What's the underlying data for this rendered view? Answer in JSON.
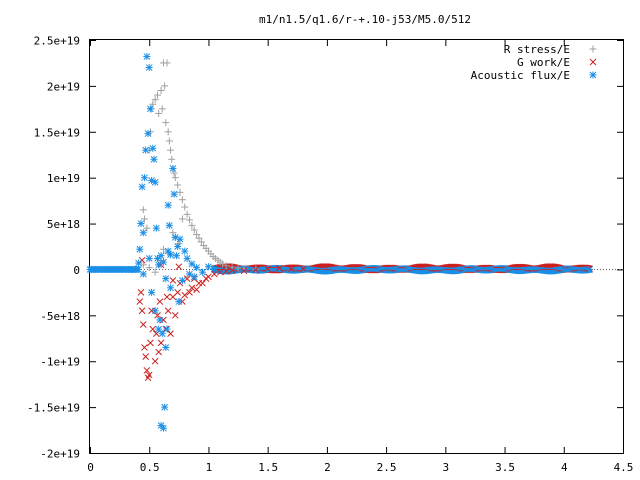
{
  "chart_data": {
    "type": "scatter",
    "title": "m1/n1.5/q1.6/r-+.10-j53/M5.0/512",
    "xlabel": "",
    "ylabel": "",
    "xlim": [
      0,
      4.5
    ],
    "ylim": [
      -2e+19,
      2.5e+19
    ],
    "grid": false,
    "legend_position": "top-right",
    "x_ticks": [
      {
        "value": 0,
        "label": "0"
      },
      {
        "value": 0.5,
        "label": "0.5"
      },
      {
        "value": 1,
        "label": "1"
      },
      {
        "value": 1.5,
        "label": "1.5"
      },
      {
        "value": 2,
        "label": "2"
      },
      {
        "value": 2.5,
        "label": "2.5"
      },
      {
        "value": 3,
        "label": "3"
      },
      {
        "value": 3.5,
        "label": "3.5"
      },
      {
        "value": 4,
        "label": "4"
      },
      {
        "value": 4.5,
        "label": "4.5"
      }
    ],
    "y_ticks": [
      {
        "value": 2.5e+19,
        "label": "2.5e+19"
      },
      {
        "value": 2e+19,
        "label": "2e+19"
      },
      {
        "value": 1.5e+19,
        "label": "1.5e+19"
      },
      {
        "value": 1e+19,
        "label": "1e+19"
      },
      {
        "value": 5e+18,
        "label": "5e+18"
      },
      {
        "value": 0,
        "label": "0"
      },
      {
        "value": -5e+18,
        "label": "-5e+18"
      },
      {
        "value": -1e+19,
        "label": "-1e+19"
      },
      {
        "value": -1.5e+19,
        "label": "-1.5e+19"
      },
      {
        "value": -2e+19,
        "label": "-2e+19"
      }
    ],
    "series": [
      {
        "name": "R stress/E",
        "marker": "plus",
        "color": "#a0a0a0",
        "points": [
          [
            0.45,
            6.5e+18
          ],
          [
            0.46,
            5.5e+18
          ],
          [
            0.48,
            4.5e+18
          ],
          [
            0.5,
            1.3e+19
          ],
          [
            0.51,
            1.5e+19
          ],
          [
            0.52,
            1.75e+19
          ],
          [
            0.53,
            1.8e+19
          ],
          [
            0.55,
            1.85e+19
          ],
          [
            0.57,
            1.9e+19
          ],
          [
            0.58,
            1.7e+19
          ],
          [
            0.6,
            1.95e+19
          ],
          [
            0.61,
            1.75e+19
          ],
          [
            0.62,
            2.25e+19
          ],
          [
            0.63,
            2e+19
          ],
          [
            0.64,
            1.6e+19
          ],
          [
            0.65,
            2.25e+19
          ],
          [
            0.66,
            1.5e+19
          ],
          [
            0.67,
            1.4e+19
          ],
          [
            0.68,
            1.3e+19
          ],
          [
            0.69,
            1.2e+19
          ],
          [
            0.7,
            1.1e+19
          ],
          [
            0.71,
            1.05e+19
          ],
          [
            0.72,
            1e+19
          ],
          [
            0.74,
            9.2e+18
          ],
          [
            0.76,
            8.4e+18
          ],
          [
            0.78,
            7.6e+18
          ],
          [
            0.8,
            6.8e+18
          ],
          [
            0.82,
            6e+18
          ],
          [
            0.84,
            5.4e+18
          ],
          [
            0.86,
            4.8e+18
          ],
          [
            0.88,
            4.3e+18
          ],
          [
            0.9,
            3.8e+18
          ],
          [
            0.92,
            3.4e+18
          ],
          [
            0.94,
            3e+18
          ],
          [
            0.96,
            2.6e+18
          ],
          [
            0.98,
            2.3e+18
          ],
          [
            1.0,
            2e+18
          ],
          [
            1.02,
            1.7e+18
          ],
          [
            1.04,
            1.4e+18
          ],
          [
            1.06,
            1.2e+18
          ],
          [
            1.08,
            1e+18
          ],
          [
            1.1,
            8e+17
          ],
          [
            1.12,
            6e+17
          ],
          [
            1.15,
            4e+17
          ],
          [
            1.2,
            2.5e+17
          ],
          [
            1.25,
            1.5e+17
          ],
          [
            1.3,
            1e+17
          ],
          [
            1.4,
            5e+16
          ],
          [
            0.45,
            5e+17
          ],
          [
            0.5,
            2e+17
          ],
          [
            0.55,
            -3e+17
          ],
          [
            0.6,
            1e+18
          ],
          [
            0.62,
            2.2e+18
          ],
          [
            0.66,
            1.8e+18
          ],
          [
            0.7,
            4e+18
          ],
          [
            0.72,
            3.5e+18
          ],
          [
            0.75,
            2.8e+18
          ],
          [
            0.78,
            5.5e+18
          ]
        ]
      },
      {
        "name": "G work/E",
        "marker": "cross",
        "color": "#cc2020",
        "points": [
          [
            0.42,
            -3.5e+18
          ],
          [
            0.43,
            -2.5e+18
          ],
          [
            0.44,
            -4.5e+18
          ],
          [
            0.45,
            -6e+18
          ],
          [
            0.46,
            -8.5e+18
          ],
          [
            0.47,
            -9.5e+18
          ],
          [
            0.48,
            -1.1e+19
          ],
          [
            0.49,
            -1.18e+19
          ],
          [
            0.5,
            -1.15e+19
          ],
          [
            0.51,
            -8e+18
          ],
          [
            0.52,
            -4.5e+18
          ],
          [
            0.53,
            -6.5e+18
          ],
          [
            0.55,
            -1e+19
          ],
          [
            0.56,
            -7e+18
          ],
          [
            0.57,
            -5e+18
          ],
          [
            0.58,
            -9e+18
          ],
          [
            0.59,
            -3.5e+18
          ],
          [
            0.6,
            -8e+18
          ],
          [
            0.62,
            -5.5e+18
          ],
          [
            0.64,
            -6.5e+18
          ],
          [
            0.65,
            -3e+18
          ],
          [
            0.66,
            -4.5e+18
          ],
          [
            0.68,
            -7e+18
          ],
          [
            0.7,
            -3e+18
          ],
          [
            0.72,
            -5e+18
          ],
          [
            0.74,
            -2.5e+18
          ],
          [
            0.76,
            -1.5e+18
          ],
          [
            0.78,
            -3.5e+18
          ],
          [
            0.8,
            -2.8e+18
          ],
          [
            0.82,
            -1e+18
          ],
          [
            0.84,
            -2.5e+18
          ],
          [
            0.86,
            -2e+18
          ],
          [
            0.88,
            -1e+18
          ],
          [
            0.9,
            -2.2e+18
          ],
          [
            0.92,
            -1.5e+18
          ],
          [
            0.95,
            -1.5e+18
          ],
          [
            0.98,
            -1e+18
          ],
          [
            1.0,
            -8e+17
          ],
          [
            1.05,
            -5e+17
          ],
          [
            1.1,
            -3e+17
          ],
          [
            1.15,
            -2e+17
          ],
          [
            1.2,
            -1e+17
          ],
          [
            1.3,
            -1.5e+17
          ],
          [
            1.4,
            -5e+16
          ],
          [
            1.5,
            1e+17
          ],
          [
            1.6,
            1.5e+17
          ],
          [
            1.7,
            5e+16
          ],
          [
            1.8,
            1e+17
          ],
          [
            0.44,
            1e+18
          ],
          [
            0.6,
            5e+17
          ],
          [
            0.7,
            -1.2e+18
          ],
          [
            0.75,
            3e+17
          ]
        ]
      },
      {
        "name": "Acoustic flux/E",
        "marker": "star",
        "color": "#1a8fe6",
        "points": [
          [
            0.41,
            7e+17
          ],
          [
            0.42,
            2.2e+18
          ],
          [
            0.43,
            5e+18
          ],
          [
            0.44,
            9e+18
          ],
          [
            0.45,
            4e+18
          ],
          [
            0.46,
            1e+19
          ],
          [
            0.47,
            1.3e+19
          ],
          [
            0.48,
            2.32e+19
          ],
          [
            0.49,
            1.48e+19
          ],
          [
            0.5,
            2.2e+19
          ],
          [
            0.51,
            1.75e+19
          ],
          [
            0.52,
            9.7e+18
          ],
          [
            0.53,
            1.32e+19
          ],
          [
            0.54,
            1.2e+19
          ],
          [
            0.55,
            9.5e+18
          ],
          [
            0.56,
            4.5e+18
          ],
          [
            0.57,
            1.2e+18
          ],
          [
            0.58,
            -6.5e+18
          ],
          [
            0.59,
            -5.5e+18
          ],
          [
            0.6,
            -1.7e+19
          ],
          [
            0.61,
            -7e+18
          ],
          [
            0.62,
            -1.73e+19
          ],
          [
            0.63,
            -1.5e+19
          ],
          [
            0.64,
            -8.5e+18
          ],
          [
            0.65,
            -6.5e+18
          ],
          [
            0.66,
            7e+18
          ],
          [
            0.67,
            4.8e+18
          ],
          [
            0.68,
            1.6e+18
          ],
          [
            0.7,
            1.1e+19
          ],
          [
            0.71,
            8.2e+18
          ],
          [
            0.72,
            3.5e+18
          ],
          [
            0.73,
            1.5e+18
          ],
          [
            0.74,
            2.5e+18
          ],
          [
            0.75,
            -3.5e+18
          ],
          [
            0.76,
            3.3e+18
          ],
          [
            0.78,
            -1.2e+18
          ],
          [
            0.8,
            2e+18
          ],
          [
            0.82,
            1.2e+18
          ],
          [
            0.84,
            -5e+17
          ],
          [
            0.86,
            6e+17
          ],
          [
            0.88,
            -8e+17
          ],
          [
            0.9,
            2e+17
          ],
          [
            0.95,
            -3e+17
          ],
          [
            1.0,
            3e+17
          ],
          [
            1.05,
            1e+17
          ],
          [
            0.45,
            -5e+17
          ],
          [
            0.5,
            1.2e+18
          ],
          [
            0.52,
            -2.5e+18
          ],
          [
            0.55,
            -4.5e+18
          ],
          [
            0.58,
            5e+17
          ],
          [
            0.6,
            1.5e+18
          ],
          [
            0.62,
            8e+17
          ],
          [
            0.64,
            -1e+18
          ],
          [
            0.66,
            2e+18
          ],
          [
            0.68,
            -2e+18
          ]
        ]
      }
    ],
    "dense_band": {
      "x_start": 0.0,
      "x_end": 4.22,
      "start_zero_until": 0.42,
      "value": 0
    }
  }
}
